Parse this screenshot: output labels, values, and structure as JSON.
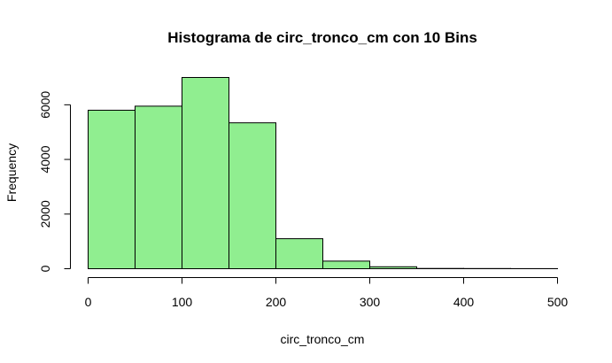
{
  "chart_data": {
    "type": "bar",
    "title": "Histograma de circ_tronco_cm con 10 Bins",
    "xlabel": "circ_tronco_cm",
    "ylabel": "Frequency",
    "bins": [
      [
        0,
        50
      ],
      [
        50,
        100
      ],
      [
        100,
        150
      ],
      [
        150,
        200
      ],
      [
        200,
        250
      ],
      [
        250,
        300
      ],
      [
        300,
        350
      ],
      [
        350,
        400
      ],
      [
        400,
        450
      ],
      [
        450,
        500
      ]
    ],
    "values": [
      5800,
      5950,
      7000,
      5340,
      1100,
      280,
      70,
      10,
      5,
      3
    ],
    "xlim": [
      0,
      500
    ],
    "ylim": [
      0,
      7000
    ],
    "x_ticks": [
      "0",
      "100",
      "200",
      "300",
      "400",
      "500"
    ],
    "y_ticks": [
      "0",
      "2000",
      "4000",
      "6000"
    ],
    "bar_color": "#90EE90",
    "grid": false
  }
}
